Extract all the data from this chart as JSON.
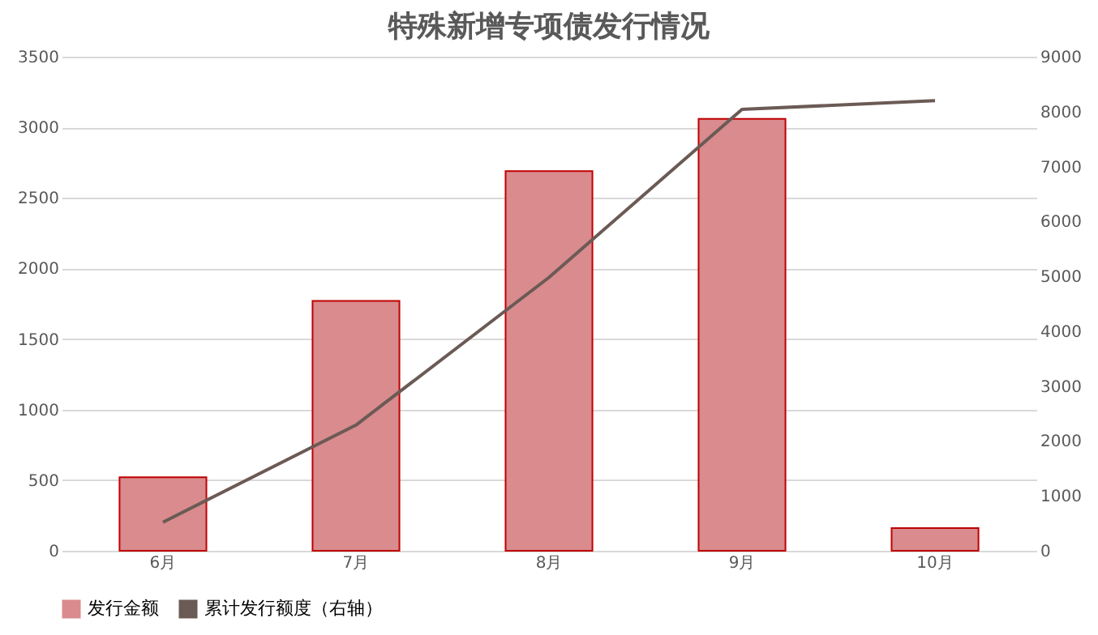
{
  "chart_data": {
    "type": "bar",
    "title": "特殊新增专项债发行情况",
    "categories": [
      "6月",
      "7月",
      "8月",
      "9月",
      "10月"
    ],
    "series": [
      {
        "name": "发行金额",
        "color": "#d98b8e",
        "values": [
          520,
          1770,
          2690,
          3060,
          160
        ]
      },
      {
        "name": "累计发行额度（右轴）",
        "type": "line",
        "axis": "y2",
        "color": "#6b5a55",
        "values": [
          520,
          2290,
          4980,
          8040,
          8200
        ]
      }
    ],
    "ylim": [
      0,
      3500
    ],
    "yticks": [
      0,
      500,
      1000,
      1500,
      2000,
      2500,
      3000,
      3500
    ],
    "y2lim": [
      0,
      9000
    ],
    "y2ticks": [
      0,
      1000,
      2000,
      3000,
      4000,
      5000,
      6000,
      7000,
      8000,
      9000
    ],
    "grid": "y",
    "legend": "bottom",
    "marker": "none",
    "line_style": "solid"
  }
}
